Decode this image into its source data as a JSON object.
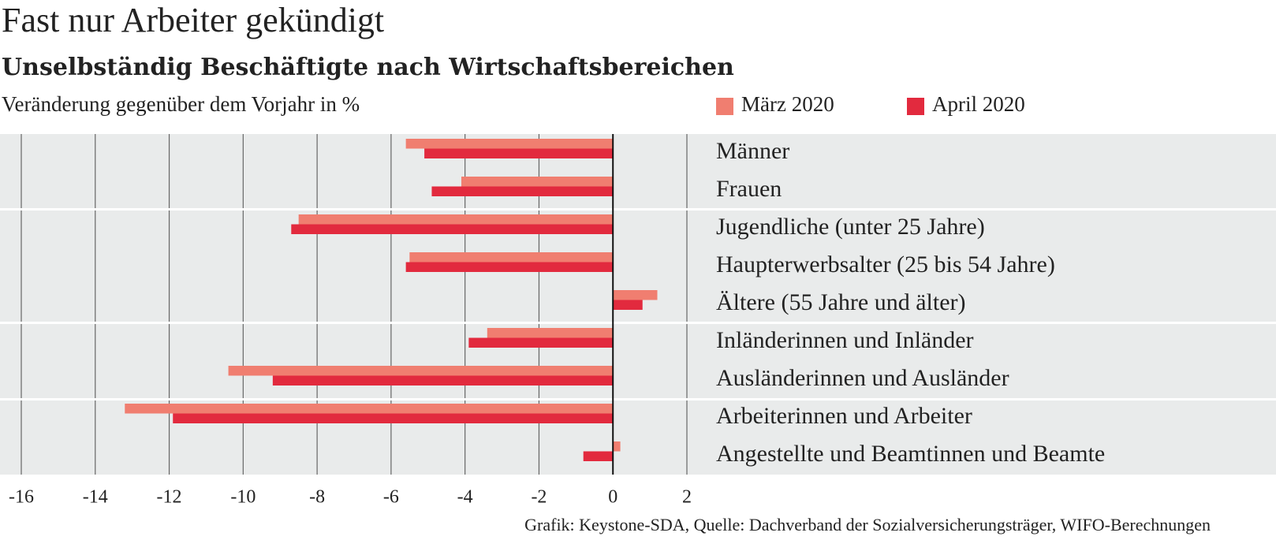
{
  "chart_data": {
    "type": "bar",
    "orientation": "horizontal",
    "title": "Fast nur Arbeiter gekündigt",
    "subtitle": "Unselbständig Beschäftigte nach Wirtschaftsbereichen",
    "axis_label": "Veränderung gegenüber dem Vorjahr in %",
    "source": "Grafik: Keystone-SDA, Quelle: Dachverband der Sozialversicherungsträger, WIFO-Berechnungen",
    "categories": [
      "Männer",
      "Frauen",
      "Jugendliche (unter 25 Jahre)",
      "Haupterwerbsalter (25 bis 54 Jahre)",
      "Ältere (55 Jahre und älter)",
      "Inländerinnen und Inländer",
      "Ausländerinnen und Ausländer",
      "Arbeiterinnen und Arbeiter",
      "Angestellte und Beamtinnen und Beamte"
    ],
    "series": [
      {
        "name": "März 2020",
        "color": "#f07e70",
        "values": [
          -5.6,
          -4.1,
          -8.5,
          -5.5,
          1.2,
          -3.4,
          -10.4,
          -13.2,
          0.2
        ]
      },
      {
        "name": "April 2020",
        "color": "#e22a3e",
        "values": [
          -5.1,
          -4.9,
          -8.7,
          -5.6,
          0.8,
          -3.9,
          -9.2,
          -11.9,
          -0.8
        ]
      }
    ],
    "xlim": [
      -16,
      2
    ],
    "xticks": [
      -16,
      -14,
      -12,
      -10,
      -8,
      -6,
      -4,
      -2,
      0,
      2
    ],
    "grid": true
  }
}
